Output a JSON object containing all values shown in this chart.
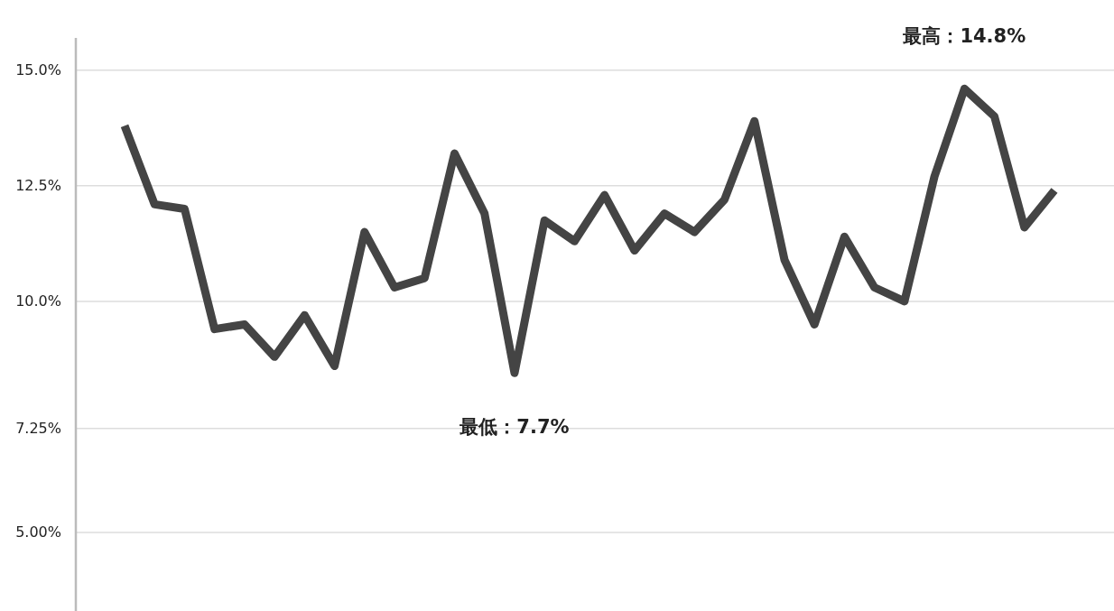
{
  "chart_data": {
    "type": "line",
    "categories": [
      null,
      null,
      null,
      null,
      null,
      null,
      null,
      null,
      null,
      null,
      null,
      null,
      null,
      null,
      null,
      null,
      null,
      null,
      null,
      null,
      null,
      null,
      null,
      null,
      null,
      null,
      null,
      null,
      null,
      null,
      null,
      null
    ],
    "series": [
      {
        "color": "#444444",
        "values": [
          13.8,
          12.1,
          12.0,
          9.4,
          9.5,
          8.8,
          9.7,
          8.6,
          11.5,
          10.3,
          10.5,
          13.2,
          11.9,
          8.45,
          11.75,
          11.3,
          12.3,
          11.1,
          11.9,
          11.5,
          12.2,
          13.9,
          10.9,
          9.5,
          11.4,
          10.3,
          10.0,
          12.7,
          14.6,
          14.0,
          11.6,
          12.4
        ]
      }
    ],
    "ylim": [
      3.3,
      15.7
    ],
    "yticks": [
      {
        "value": 5,
        "label": "5.00%"
      },
      {
        "value": 7.25,
        "label": "7.25%"
      },
      {
        "value": 10,
        "label": "10.0%"
      },
      {
        "value": 12.5,
        "label": "12.5%"
      },
      {
        "value": 15,
        "label": "15.0%"
      }
    ],
    "grid": "y",
    "marker": "none",
    "line_style": "solid",
    "annotations": [
      "最高：14.8%",
      "最低：7.7%"
    ]
  }
}
